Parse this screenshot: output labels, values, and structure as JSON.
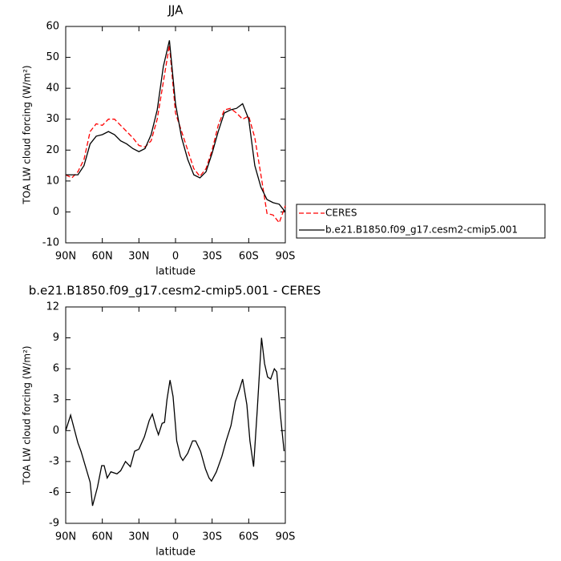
{
  "chart_data": [
    {
      "type": "line",
      "title": "JJA",
      "xlabel": "latitude",
      "ylabel": "TOA LW cloud forcing (W/m²)",
      "x": [
        90,
        85,
        80,
        75,
        70,
        65,
        60,
        55,
        50,
        45,
        40,
        35,
        30,
        25,
        20,
        15,
        10,
        5,
        0,
        -5,
        -10,
        -15,
        -20,
        -25,
        -30,
        -35,
        -40,
        -45,
        -50,
        -55,
        -60,
        -65,
        -70,
        -75,
        -80,
        -85,
        -90
      ],
      "series": [
        {
          "name": "CERES",
          "color": "#ff0000",
          "dash": true,
          "values": [
            12,
            11,
            13,
            17,
            26,
            28.5,
            28,
            30,
            30,
            28,
            26,
            24,
            21.5,
            21,
            23,
            30,
            42,
            54,
            32,
            26,
            20,
            14,
            11.5,
            14,
            20,
            28,
            33,
            33.5,
            32,
            30,
            31,
            24,
            12,
            -0.5,
            -1,
            -3.5,
            2
          ]
        },
        {
          "name": "b.e21.B1850.f09_g17.cesm2-cmip5.001",
          "color": "#000000",
          "dash": false,
          "values": [
            12,
            12,
            12,
            15,
            22,
            24.5,
            25,
            26,
            25,
            23,
            22,
            20.5,
            19.5,
            20.5,
            25,
            33,
            47,
            55.5,
            35,
            24,
            17,
            12,
            11,
            13,
            19,
            26,
            32,
            33,
            33.5,
            35,
            30,
            15,
            8,
            4,
            3,
            2.5,
            0
          ]
        }
      ],
      "xlim": [
        90,
        -90
      ],
      "xticks": [
        {
          "value": 90,
          "label": "90N"
        },
        {
          "value": 60,
          "label": "60N"
        },
        {
          "value": 30,
          "label": "30N"
        },
        0,
        {
          "value": -30,
          "label": "30S"
        },
        {
          "value": -60,
          "label": "60S"
        },
        {
          "value": -90,
          "label": "90S"
        }
      ],
      "ylim": [
        -10,
        60
      ],
      "yticks": [
        -10,
        0,
        10,
        20,
        30,
        40,
        50,
        60
      ],
      "legend": "right-outside"
    },
    {
      "type": "line",
      "title": "b.e21.B1850.f09_g17.cesm2-cmip5.001 - CERES",
      "xlabel": "latitude",
      "ylabel": "TOA LW cloud forcing (W/m²)",
      "x": [
        90,
        86,
        80,
        77.5,
        70,
        68,
        64,
        60.5,
        58.5,
        56,
        53,
        48,
        45,
        41,
        37,
        33.5,
        30,
        25.5,
        21.5,
        19,
        16,
        14,
        11,
        9,
        7,
        4.5,
        2,
        -1,
        -4,
        -6,
        -10,
        -14,
        -16.5,
        -20.5,
        -24.5,
        -27.5,
        -29.5,
        -33.5,
        -38,
        -41.5,
        -45.5,
        -49,
        -52.5,
        -55,
        -58.5,
        -61,
        -64,
        -67,
        -70.5,
        -73,
        -75.5,
        -78,
        -81,
        -83,
        -86,
        -89
      ],
      "series": [
        {
          "color": "#000000",
          "dash": false,
          "values": [
            0,
            1.5,
            -1.2,
            -2,
            -5,
            -7.3,
            -5.5,
            -3.4,
            -3.4,
            -4.6,
            -4,
            -4.2,
            -3.9,
            -3,
            -3.5,
            -2,
            -1.8,
            -0.6,
            1,
            1.6,
            0.3,
            -0.4,
            0.7,
            0.8,
            3,
            4.9,
            3.3,
            -1,
            -2.5,
            -2.9,
            -2.2,
            -1,
            -1,
            -2,
            -3.7,
            -4.6,
            -4.9,
            -4,
            -2.5,
            -1,
            0.5,
            2.8,
            4,
            5,
            2.5,
            -1,
            -3.5,
            2,
            9,
            6.5,
            5.2,
            5,
            6,
            5.7,
            1.5,
            -2
          ]
        }
      ],
      "xlim": [
        90,
        -90
      ],
      "xticks": [
        {
          "value": 90,
          "label": "90N"
        },
        {
          "value": 60,
          "label": "60N"
        },
        {
          "value": 30,
          "label": "30N"
        },
        0,
        {
          "value": -30,
          "label": "30S"
        },
        {
          "value": -60,
          "label": "60S"
        },
        {
          "value": -90,
          "label": "90S"
        }
      ],
      "ylim": [
        -9,
        12
      ],
      "yticks": [
        -9,
        -6,
        -3,
        0,
        3,
        6,
        9,
        12
      ]
    }
  ]
}
